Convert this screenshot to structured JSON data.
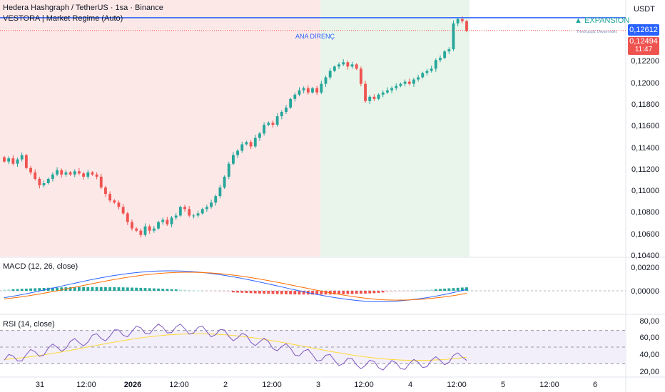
{
  "header": {
    "symbol_line": "Hedera Hashgraph / TetherUS · 1sa · Binance",
    "indicator_line": "VESTORA | Market Regime (Auto)",
    "currency": "USDT"
  },
  "annotations": {
    "expansion_label": "▲ EXPANSION",
    "expansion_sub": "Trend güçlü. Devam eder.",
    "resistance_label": "ANA DİRENÇ"
  },
  "price_tags": {
    "resistance_price": "0,12612",
    "last_price": "0,12494",
    "countdown": "11:47"
  },
  "price_axis": [
    "0,12200",
    "0,12000",
    "0,11800",
    "0,11600",
    "0,11400",
    "0,11200",
    "0,11000",
    "0,10800",
    "0,10600",
    "0,10400"
  ],
  "time_axis": [
    "31",
    "12:00",
    "2026",
    "12:00",
    "2",
    "12:00",
    "3",
    "12:00",
    "4",
    "12:00",
    "5",
    "12:00",
    "6"
  ],
  "macd": {
    "label": "MACD (12, 26, close)",
    "ticks": [
      "0,00200",
      "0,00000"
    ]
  },
  "rsi": {
    "label": "RSI (14, close)",
    "ticks": [
      "80,00",
      "60,00",
      "40,00",
      "20,00"
    ]
  },
  "colors": {
    "up": "#26a69a",
    "down": "#ef5350",
    "bg_red": "#fde8e8",
    "bg_green": "#e9f5ea",
    "resistance": "#2962ff",
    "macd_line": "#2962ff",
    "signal_line": "#ff6d00",
    "rsi_line": "#7e57c2",
    "rsi_ma": "#fdd835",
    "expansion": "#26a69a"
  },
  "chart_data": {
    "type": "candlestick",
    "ylim": [
      0.104,
      0.1275
    ],
    "resistance": 0.12612,
    "last": 0.12494,
    "close_series": [
      0.1128,
      0.1131,
      0.1126,
      0.113,
      0.1134,
      0.1122,
      0.1118,
      0.1112,
      0.1106,
      0.1108,
      0.1112,
      0.1116,
      0.112,
      0.1116,
      0.1118,
      0.1116,
      0.1119,
      0.1117,
      0.1114,
      0.1118,
      0.1116,
      0.1114,
      0.1104,
      0.1098,
      0.1092,
      0.109,
      0.1086,
      0.108,
      0.1072,
      0.1066,
      0.1064,
      0.106,
      0.1068,
      0.1064,
      0.1066,
      0.1072,
      0.1074,
      0.107,
      0.1076,
      0.1078,
      0.1086,
      0.1084,
      0.1078,
      0.1078,
      0.108,
      0.1084,
      0.1086,
      0.109,
      0.1096,
      0.1104,
      0.1114,
      0.1126,
      0.1134,
      0.1138,
      0.1144,
      0.1146,
      0.1142,
      0.115,
      0.1154,
      0.1162,
      0.1164,
      0.1162,
      0.117,
      0.1174,
      0.1178,
      0.1186,
      0.119,
      0.1194,
      0.1196,
      0.1192,
      0.1196,
      0.1192,
      0.12,
      0.1206,
      0.1212,
      0.1216,
      0.1218,
      0.122,
      0.1216,
      0.1218,
      0.1214,
      0.12,
      0.1184,
      0.1188,
      0.1186,
      0.119,
      0.1192,
      0.1194,
      0.1196,
      0.1198,
      0.12,
      0.1202,
      0.12,
      0.1204,
      0.1206,
      0.121,
      0.1212,
      0.1214,
      0.1222,
      0.1224,
      0.123,
      0.1232,
      0.1256,
      0.126,
      0.1258,
      0.1249
    ]
  }
}
